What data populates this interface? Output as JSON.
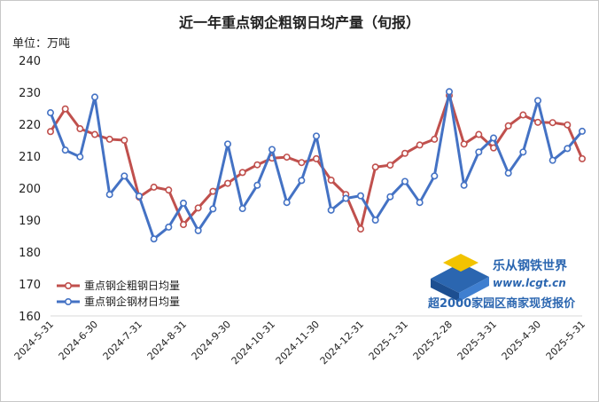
{
  "chart_data": {
    "type": "line",
    "title": "近一年重点钢企粗钢日均产量（旬报）",
    "unit_label": "单位：万吨",
    "ylim": [
      160,
      240
    ],
    "yticks": [
      160,
      170,
      180,
      190,
      200,
      210,
      220,
      230,
      240
    ],
    "xtick_labels": [
      "2024-5-31",
      "2024-6-30",
      "2024-7-31",
      "2024-8-31",
      "2024-9-30",
      "2024-10-31",
      "2024-11-30",
      "2024-12-31",
      "2025-1-31",
      "2025-2-28",
      "2025-3-31",
      "2025-4-30",
      "2025-5-31"
    ],
    "legend_position": "bottom-left",
    "series": [
      {
        "name": "重点钢企粗钢日均量",
        "color": "#c0504d",
        "values": [
          217.7,
          224.8,
          218.6,
          216.8,
          215.3,
          215.0,
          197.2,
          200.3,
          199.4,
          188.6,
          193.8,
          199.0,
          201.5,
          204.9,
          207.3,
          209.4,
          209.7,
          208.0,
          209.2,
          202.5,
          198.0,
          187.2,
          206.6,
          207.2,
          210.9,
          213.5,
          215.3,
          229.0,
          213.8,
          216.8,
          212.6,
          219.5,
          222.9,
          220.6,
          220.5,
          219.8,
          209.2
        ]
      },
      {
        "name": "重点钢企钢材日均量",
        "color": "#4472c4",
        "values": [
          223.6,
          211.9,
          209.8,
          228.5,
          198.0,
          203.8,
          197.5,
          184.1,
          187.8,
          195.3,
          186.7,
          193.5,
          213.8,
          193.6,
          200.9,
          212.1,
          195.5,
          202.4,
          216.3,
          193.1,
          196.8,
          197.6,
          190.0,
          197.3,
          202.1,
          195.5,
          203.8,
          230.2,
          200.9,
          211.3,
          215.7,
          204.7,
          211.3,
          227.4,
          208.7,
          212.4,
          217.8
        ]
      }
    ]
  },
  "logo": {
    "name": "乐从钢铁世界",
    "url": "www.lcgt.cn",
    "slogan": "超2000家园区商家现货报价"
  }
}
